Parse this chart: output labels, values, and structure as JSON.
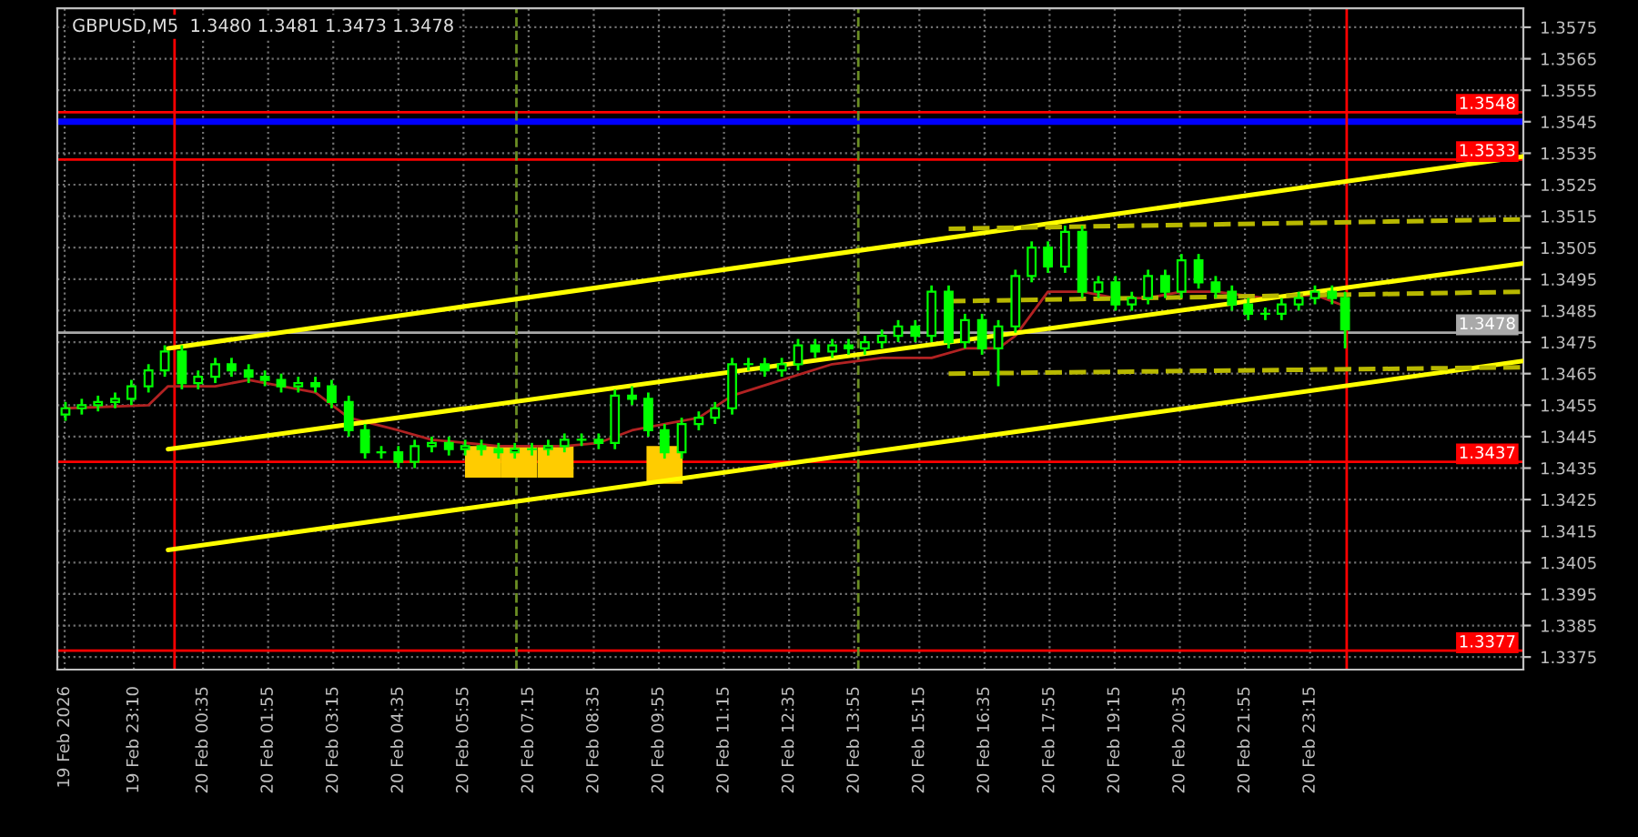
{
  "chart_data": {
    "type": "candlestick",
    "title": "GBPUSD,M5  1.3480 1.3481 1.3473 1.3478",
    "color": "#00ff00",
    "x": [
      "2026-02-19T21:46",
      "2026-02-19T22:06",
      "2026-02-19T22:26",
      "2026-02-19T22:47",
      "2026-02-19T23:07",
      "2026-02-19T23:28",
      "2026-02-19T23:48",
      "2026-02-20T00:09",
      "2026-02-20T00:29",
      "2026-02-20T00:50",
      "2026-02-20T01:10",
      "2026-02-20T01:31",
      "2026-02-20T01:51",
      "2026-02-20T02:11",
      "2026-02-20T02:32",
      "2026-02-20T02:53",
      "2026-02-20T03:13",
      "2026-02-20T03:34",
      "2026-02-20T03:54",
      "2026-02-20T04:14",
      "2026-02-20T04:35",
      "2026-02-20T04:55",
      "2026-02-20T05:16",
      "2026-02-20T05:37",
      "2026-02-20T05:57",
      "2026-02-20T06:17",
      "2026-02-20T06:38",
      "2026-02-20T06:58",
      "2026-02-20T07:19",
      "2026-02-20T07:39",
      "2026-02-20T07:59",
      "2026-02-20T08:20",
      "2026-02-20T08:41",
      "2026-02-20T09:01",
      "2026-02-20T09:22",
      "2026-02-20T09:42",
      "2026-02-20T10:02",
      "2026-02-20T10:23",
      "2026-02-20T10:44",
      "2026-02-20T11:04",
      "2026-02-20T11:25",
      "2026-02-20T11:45",
      "2026-02-20T12:05",
      "2026-02-20T12:26",
      "2026-02-20T12:46",
      "2026-02-20T13:07",
      "2026-02-20T13:28",
      "2026-02-20T13:48",
      "2026-02-20T14:08",
      "2026-02-20T14:29",
      "2026-02-20T14:49",
      "2026-02-20T15:10",
      "2026-02-20T15:30",
      "2026-02-20T15:51",
      "2026-02-20T16:11",
      "2026-02-20T16:32",
      "2026-02-20T16:52",
      "2026-02-20T17:13",
      "2026-02-20T17:33",
      "2026-02-20T17:53",
      "2026-02-20T18:14",
      "2026-02-20T18:35",
      "2026-02-20T18:55",
      "2026-02-20T19:16",
      "2026-02-20T19:36",
      "2026-02-20T19:56",
      "2026-02-20T20:17",
      "2026-02-20T20:37",
      "2026-02-20T20:58",
      "2026-02-20T21:19",
      "2026-02-20T21:39",
      "2026-02-20T21:59",
      "2026-02-20T22:20",
      "2026-02-20T22:40",
      "2026-02-20T23:01",
      "2026-02-20T23:21",
      "2026-02-20T23:42",
      "2026-02-20T23:58"
    ],
    "ohlc": [
      [
        1.3452,
        1.3456,
        1.345,
        1.3454
      ],
      [
        1.3454,
        1.3457,
        1.3452,
        1.3455
      ],
      [
        1.3455,
        1.3458,
        1.3453,
        1.3456
      ],
      [
        1.3456,
        1.3459,
        1.3454,
        1.3457
      ],
      [
        1.3457,
        1.3463,
        1.3455,
        1.3461
      ],
      [
        1.3461,
        1.3468,
        1.3459,
        1.3466
      ],
      [
        1.3466,
        1.3474,
        1.3464,
        1.3472
      ],
      [
        1.3472,
        1.3474,
        1.346,
        1.3462
      ],
      [
        1.3462,
        1.3466,
        1.346,
        1.3464
      ],
      [
        1.3464,
        1.347,
        1.3462,
        1.3468
      ],
      [
        1.3468,
        1.347,
        1.3464,
        1.3466
      ],
      [
        1.3466,
        1.3468,
        1.3462,
        1.3464
      ],
      [
        1.3464,
        1.3466,
        1.3461,
        1.3463
      ],
      [
        1.3463,
        1.3465,
        1.3459,
        1.3461
      ],
      [
        1.3461,
        1.3464,
        1.3459,
        1.3462
      ],
      [
        1.3462,
        1.3464,
        1.3459,
        1.3461
      ],
      [
        1.3461,
        1.3463,
        1.3454,
        1.3456
      ],
      [
        1.3456,
        1.3458,
        1.3445,
        1.3447
      ],
      [
        1.3447,
        1.3449,
        1.3438,
        1.344
      ],
      [
        1.344,
        1.3442,
        1.3438,
        1.344
      ],
      [
        1.344,
        1.3442,
        1.3435,
        1.3437
      ],
      [
        1.3437,
        1.3444,
        1.3435,
        1.3442
      ],
      [
        1.3442,
        1.3445,
        1.344,
        1.3443
      ],
      [
        1.3443,
        1.3445,
        1.3439,
        1.3441
      ],
      [
        1.3441,
        1.3444,
        1.3439,
        1.3442
      ],
      [
        1.3442,
        1.3444,
        1.3439,
        1.3441
      ],
      [
        1.3441,
        1.3443,
        1.3438,
        1.344
      ],
      [
        1.344,
        1.3443,
        1.3438,
        1.3441
      ],
      [
        1.3441,
        1.3443,
        1.3439,
        1.3441
      ],
      [
        1.3441,
        1.3444,
        1.3439,
        1.3442
      ],
      [
        1.3442,
        1.3446,
        1.344,
        1.3444
      ],
      [
        1.3444,
        1.3446,
        1.3442,
        1.3444
      ],
      [
        1.3444,
        1.3446,
        1.3441,
        1.3443
      ],
      [
        1.3443,
        1.346,
        1.3441,
        1.3458
      ],
      [
        1.3458,
        1.3461,
        1.3455,
        1.3457
      ],
      [
        1.3457,
        1.3459,
        1.3445,
        1.3447
      ],
      [
        1.3447,
        1.3449,
        1.3438,
        1.344
      ],
      [
        1.344,
        1.3451,
        1.3438,
        1.3449
      ],
      [
        1.3449,
        1.3453,
        1.3447,
        1.3451
      ],
      [
        1.3451,
        1.3456,
        1.3449,
        1.3454
      ],
      [
        1.3454,
        1.347,
        1.3452,
        1.3468
      ],
      [
        1.3468,
        1.347,
        1.3466,
        1.3468
      ],
      [
        1.3468,
        1.347,
        1.3464,
        1.3466
      ],
      [
        1.3466,
        1.347,
        1.3464,
        1.3468
      ],
      [
        1.3468,
        1.3476,
        1.3466,
        1.3474
      ],
      [
        1.3474,
        1.3476,
        1.347,
        1.3472
      ],
      [
        1.3472,
        1.3476,
        1.347,
        1.3474
      ],
      [
        1.3474,
        1.3476,
        1.3471,
        1.3473
      ],
      [
        1.3473,
        1.3477,
        1.3471,
        1.3475
      ],
      [
        1.3475,
        1.3479,
        1.3473,
        1.3477
      ],
      [
        1.3477,
        1.3482,
        1.3475,
        1.348
      ],
      [
        1.348,
        1.3482,
        1.3475,
        1.3477
      ],
      [
        1.3477,
        1.3493,
        1.3475,
        1.3491
      ],
      [
        1.3491,
        1.3493,
        1.3473,
        1.3475
      ],
      [
        1.3475,
        1.3484,
        1.3473,
        1.3482
      ],
      [
        1.3482,
        1.3484,
        1.3471,
        1.3473
      ],
      [
        1.3473,
        1.3482,
        1.3461,
        1.348
      ],
      [
        1.348,
        1.3498,
        1.3478,
        1.3496
      ],
      [
        1.3496,
        1.3507,
        1.3494,
        1.3505
      ],
      [
        1.3505,
        1.3507,
        1.3497,
        1.3499
      ],
      [
        1.3499,
        1.3512,
        1.3497,
        1.351
      ],
      [
        1.351,
        1.3512,
        1.3489,
        1.3491
      ],
      [
        1.3491,
        1.3496,
        1.3489,
        1.3494
      ],
      [
        1.3494,
        1.3496,
        1.3485,
        1.3487
      ],
      [
        1.3487,
        1.3491,
        1.3485,
        1.3489
      ],
      [
        1.3489,
        1.3498,
        1.3487,
        1.3496
      ],
      [
        1.3496,
        1.3498,
        1.3489,
        1.3491
      ],
      [
        1.3491,
        1.3503,
        1.3489,
        1.3501
      ],
      [
        1.3501,
        1.3503,
        1.3492,
        1.3494
      ],
      [
        1.3494,
        1.3496,
        1.3489,
        1.3491
      ],
      [
        1.3491,
        1.3493,
        1.3485,
        1.3487
      ],
      [
        1.3487,
        1.3489,
        1.3482,
        1.3484
      ],
      [
        1.3484,
        1.3486,
        1.3482,
        1.3484
      ],
      [
        1.3484,
        1.3489,
        1.3482,
        1.3487
      ],
      [
        1.3487,
        1.3491,
        1.3485,
        1.3489
      ],
      [
        1.3489,
        1.3493,
        1.3487,
        1.3491
      ],
      [
        1.3491,
        1.3493,
        1.3487,
        1.3489
      ],
      [
        1.3489,
        1.3491,
        1.3473,
        1.3479
      ]
    ],
    "series": [
      {
        "type": "line",
        "color": "#b22222",
        "x": [
          "2026-02-19T21:46",
          "2026-02-19T23:28",
          "2026-02-19T23:52",
          "2026-02-20T00:50",
          "2026-02-20T01:31",
          "2026-02-20T02:53",
          "2026-02-20T03:34",
          "2026-02-20T04:35",
          "2026-02-20T05:16",
          "2026-02-20T06:38",
          "2026-02-20T07:59",
          "2026-02-20T08:41",
          "2026-02-20T09:22",
          "2026-02-20T10:02",
          "2026-02-20T10:44",
          "2026-02-20T11:25",
          "2026-02-20T12:26",
          "2026-02-20T13:28",
          "2026-02-20T14:29",
          "2026-02-20T15:30",
          "2026-02-20T16:11",
          "2026-02-20T16:52",
          "2026-02-20T17:13",
          "2026-02-20T17:53",
          "2026-02-20T18:35",
          "2026-02-20T19:16",
          "2026-02-20T19:56",
          "2026-02-20T20:37",
          "2026-02-20T21:19",
          "2026-02-20T22:20",
          "2026-02-20T23:21",
          "2026-02-20T23:52"
        ],
        "values": [
          1.3454,
          1.3455,
          1.3461,
          1.3461,
          1.3463,
          1.3459,
          1.3451,
          1.3447,
          1.3444,
          1.3442,
          1.3442,
          1.3443,
          1.3447,
          1.3449,
          1.3451,
          1.3458,
          1.3463,
          1.3468,
          1.347,
          1.347,
          1.3473,
          1.3473,
          1.3477,
          1.3491,
          1.3491,
          1.3489,
          1.3489,
          1.3491,
          1.3491,
          1.3489,
          1.349,
          1.3487
        ]
      },
      {
        "type": "line",
        "color": "#ffff00",
        "x": [
          "2026-02-19T23:52",
          "2026-02-21T03:37"
        ],
        "values": [
          1.3473,
          1.3534
        ]
      },
      {
        "type": "line",
        "color": "#ffff00",
        "x": [
          "2026-02-19T23:52",
          "2026-02-21T03:37"
        ],
        "values": [
          1.3441,
          1.35
        ]
      },
      {
        "type": "line",
        "color": "#ffff00",
        "x": [
          "2026-02-19T23:52",
          "2026-02-21T03:37"
        ],
        "values": [
          1.3409,
          1.3469
        ]
      },
      {
        "type": "line",
        "color": "#b8b800",
        "line_style": "dashed",
        "x": [
          "2026-02-20T15:51",
          "2026-02-21T03:37"
        ],
        "values": [
          1.3511,
          1.3514
        ]
      },
      {
        "type": "line",
        "color": "#b8b800",
        "line_style": "dashed",
        "x": [
          "2026-02-20T15:51",
          "2026-02-21T03:37"
        ],
        "values": [
          1.3488,
          1.3491
        ]
      },
      {
        "type": "line",
        "color": "#b8b800",
        "line_style": "dashed",
        "x": [
          "2026-02-20T15:51",
          "2026-02-21T03:37"
        ],
        "values": [
          1.3465,
          1.3467
        ]
      },
      {
        "type": "bar",
        "color": "#ffcc00",
        "x": [
          "2026-02-20T06:19",
          "2026-02-20T07:03",
          "2026-02-20T07:48",
          "2026-02-20T10:02"
        ],
        "base": [
          1.3432,
          1.3432,
          1.3432,
          1.343
        ],
        "values": [
          0.001,
          0.001,
          0.001,
          0.0012
        ]
      }
    ],
    "ref_lines": [
      {
        "axis": "y",
        "value": 1.3548,
        "label": "1.3548",
        "color": "#ff0000"
      },
      {
        "axis": "y",
        "value": 1.3545,
        "label": null,
        "color": "#0000ff"
      },
      {
        "axis": "y",
        "value": 1.3533,
        "label": "1.3533",
        "color": "#ff0000"
      },
      {
        "axis": "y",
        "value": 1.3478,
        "label": "1.3478",
        "color": "#a9a9a9"
      },
      {
        "axis": "y",
        "value": 1.3437,
        "label": "1.3437",
        "color": "#ff0000"
      },
      {
        "axis": "y",
        "value": 1.3377,
        "label": "1.3377",
        "color": "#ff0000"
      },
      {
        "axis": "x",
        "value": "2026-02-20T00:00",
        "label": null,
        "color": "#ff0000"
      },
      {
        "axis": "x",
        "value": "2026-02-21T00:00",
        "label": null,
        "color": "#ff0000"
      },
      {
        "axis": "x",
        "value": "2026-02-20T07:00",
        "label": null,
        "color": "#6b8e23",
        "line_style": "dashed"
      },
      {
        "axis": "x",
        "value": "2026-02-20T14:00",
        "label": null,
        "color": "#6b8e23",
        "line_style": "dashed"
      }
    ],
    "xlim": [
      "2026-02-19T21:36",
      "2026-02-21T03:37"
    ],
    "ylim": [
      1.3371,
      1.3581
    ],
    "xticks": [
      {
        "value": "2026-02-19T21:45",
        "label": "19 Feb 2026"
      },
      {
        "value": "2026-02-19T23:10",
        "label": "19 Feb 23:10"
      },
      {
        "value": "2026-02-20T00:35",
        "label": "20 Feb 00:35"
      },
      {
        "value": "2026-02-20T01:55",
        "label": "20 Feb 01:55"
      },
      {
        "value": "2026-02-20T03:15",
        "label": "20 Feb 03:15"
      },
      {
        "value": "2026-02-20T04:35",
        "label": "20 Feb 04:35"
      },
      {
        "value": "2026-02-20T05:55",
        "label": "20 Feb 05:55"
      },
      {
        "value": "2026-02-20T07:15",
        "label": "20 Feb 07:15"
      },
      {
        "value": "2026-02-20T08:35",
        "label": "20 Feb 08:35"
      },
      {
        "value": "2026-02-20T09:55",
        "label": "20 Feb 09:55"
      },
      {
        "value": "2026-02-20T11:15",
        "label": "20 Feb 11:15"
      },
      {
        "value": "2026-02-20T12:35",
        "label": "20 Feb 12:35"
      },
      {
        "value": "2026-02-20T13:55",
        "label": "20 Feb 13:55"
      },
      {
        "value": "2026-02-20T15:15",
        "label": "20 Feb 15:15"
      },
      {
        "value": "2026-02-20T16:35",
        "label": "20 Feb 16:35"
      },
      {
        "value": "2026-02-20T17:55",
        "label": "20 Feb 17:55"
      },
      {
        "value": "2026-02-20T19:15",
        "label": "20 Feb 19:15"
      },
      {
        "value": "2026-02-20T20:35",
        "label": "20 Feb 20:35"
      },
      {
        "value": "2026-02-20T21:55",
        "label": "20 Feb 21:55"
      },
      {
        "value": "2026-02-20T23:15",
        "label": "20 Feb 23:15"
      }
    ],
    "yticks": [
      1.3575,
      1.3565,
      1.3555,
      1.3545,
      1.3535,
      1.3525,
      1.3515,
      1.3505,
      1.3495,
      1.3485,
      1.3475,
      1.3465,
      1.3455,
      1.3445,
      1.3435,
      1.3425,
      1.3415,
      1.3405,
      1.3395,
      1.3385,
      1.3375
    ],
    "grid": true,
    "legend": false
  }
}
